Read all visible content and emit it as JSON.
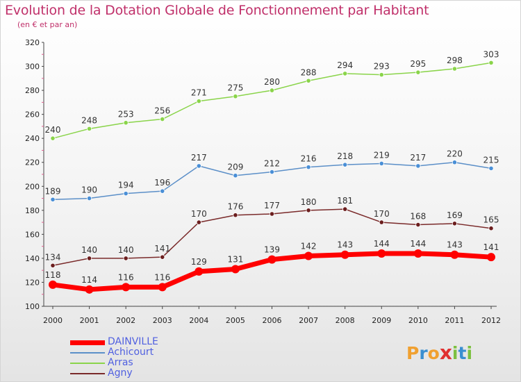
{
  "title": "Evolution de la Dotation Globale de Fonctionnement par Habitant",
  "subtitle": "(en € et par an)",
  "logo": {
    "letters": [
      "P",
      "r",
      "o",
      "x",
      "i",
      "t",
      "i"
    ],
    "colors": [
      "#f0a030",
      "#3a8fd0",
      "#f0a030",
      "#e03030",
      "#7cc040",
      "#3a8fd0",
      "#7cc040"
    ]
  },
  "chart_data": {
    "type": "line",
    "x": [
      "2000",
      "2001",
      "2002",
      "2003",
      "2004",
      "2005",
      "2006",
      "2007",
      "2008",
      "2009",
      "2010",
      "2011",
      "2012"
    ],
    "yticks": [
      "100",
      "120",
      "140",
      "160",
      "180",
      "200",
      "220",
      "240",
      "260",
      "280",
      "300",
      "320"
    ],
    "ylim": [
      100,
      320
    ],
    "grid": false,
    "legend_position": "bottom-left",
    "series": [
      {
        "name": "Arras",
        "color": "#8ad44a",
        "fill": "#8ad44a",
        "width": 1.5,
        "labels": [
          "240",
          "248",
          "253",
          "256",
          "271",
          "275",
          "280",
          "288",
          "294",
          "293",
          "295",
          "298",
          "303"
        ],
        "values": [
          240,
          248,
          253,
          256,
          271,
          275,
          280,
          288,
          294,
          293,
          295,
          298,
          303
        ]
      },
      {
        "name": "Achicourt",
        "color": "#5b8fc8",
        "fill": "#4a8fd6",
        "width": 1.5,
        "labels": [
          "189",
          "190",
          "194",
          "196",
          "217",
          "209",
          "212",
          "216",
          "218",
          "219",
          "217",
          "220",
          "215"
        ],
        "values": [
          189,
          190,
          194,
          196,
          217,
          209,
          212,
          216,
          218,
          219,
          217,
          220,
          215
        ]
      },
      {
        "name": "Agny",
        "color": "#7a2a2a",
        "fill": "#6b1e1e",
        "width": 1.5,
        "labels": [
          "134",
          "140",
          "140",
          "141",
          "170",
          "176",
          "177",
          "180",
          "181",
          "170",
          "168",
          "169",
          "165"
        ],
        "values": [
          134,
          140,
          140,
          141,
          170,
          176,
          177,
          180,
          181,
          170,
          168,
          169,
          165
        ]
      },
      {
        "name": "DAINVILLE",
        "color": "#ff0000",
        "fill": "#ff0000",
        "width": 7,
        "labels": [
          "118",
          "114",
          "116",
          "116",
          "129",
          "131",
          "139",
          "142",
          "143",
          "144",
          "144",
          "143",
          "141"
        ],
        "values": [
          118,
          114,
          116,
          116,
          129,
          131,
          139,
          142,
          143,
          144,
          144,
          143,
          141
        ]
      }
    ],
    "legend": [
      {
        "name": "DAINVILLE",
        "color": "#ff0000",
        "text_color": "#5060e0",
        "thickness": 7
      },
      {
        "name": "Achicourt",
        "color": "#5b8fc8",
        "text_color": "#5060e0",
        "thickness": 2
      },
      {
        "name": "Arras",
        "color": "#8ad44a",
        "text_color": "#5060e0",
        "thickness": 2
      },
      {
        "name": "Agny",
        "color": "#7a2a2a",
        "text_color": "#5060e0",
        "thickness": 2
      }
    ]
  }
}
